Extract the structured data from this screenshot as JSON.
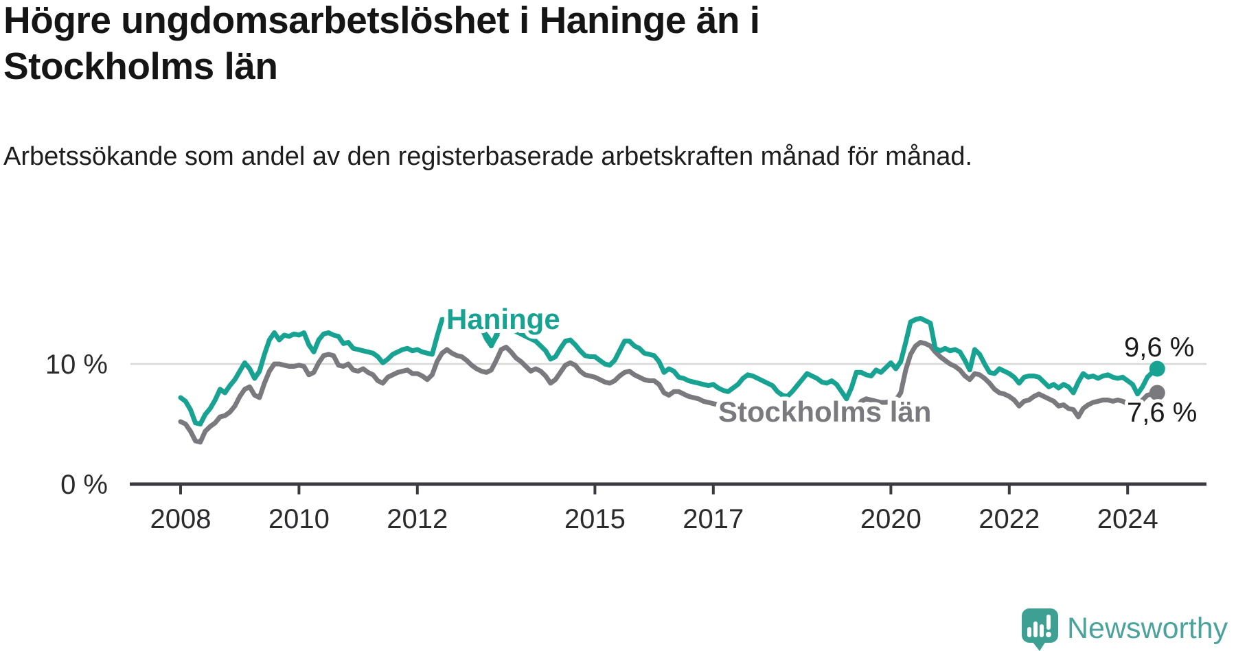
{
  "header": {
    "title": "Högre ungdomsarbetslöshet i Haninge än i Stockholms län",
    "subtitle": "Arbetssökande som andel av den registerbaserade arbetskraften månad för månad."
  },
  "chart_data": {
    "type": "line",
    "title": "Högre ungdomsarbetslöshet i Haninge än i Stockholms län",
    "subtitle": "Arbetssökande som andel av den registerbaserade arbetskraften månad för månad.",
    "x_unit": "month",
    "x_start": "2008-01",
    "x_end": "2024-07",
    "ylim": [
      0,
      14.5
    ],
    "grid": "single horizontal gridline at 10 %",
    "legend_position": "inline labels on lines",
    "x_ticks": [
      {
        "year": 2008,
        "label": "2008"
      },
      {
        "year": 2010,
        "label": "2010"
      },
      {
        "year": 2012,
        "label": "2012"
      },
      {
        "year": 2015,
        "label": "2015"
      },
      {
        "year": 2017,
        "label": "2017"
      },
      {
        "year": 2020,
        "label": "2020"
      },
      {
        "year": 2022,
        "label": "2022"
      },
      {
        "year": 2024,
        "label": "2024"
      }
    ],
    "y_ticks": [
      {
        "value": 10,
        "label": "10 %"
      },
      {
        "value": 0,
        "label": "0 %"
      }
    ],
    "series": [
      {
        "name": "Haninge",
        "color": "#17A291",
        "end_label": "9,6 %",
        "end_value": 9.6,
        "values": [
          7.2,
          6.9,
          6.2,
          5.1,
          5.0,
          5.8,
          6.3,
          7.0,
          7.9,
          7.6,
          8.2,
          8.7,
          9.4,
          10.1,
          9.6,
          8.8,
          9.4,
          10.8,
          12.0,
          12.6,
          12.0,
          12.4,
          12.3,
          12.5,
          12.4,
          12.6,
          11.6,
          11.0,
          12.0,
          12.5,
          12.6,
          12.4,
          12.3,
          11.7,
          11.8,
          11.3,
          11.2,
          11.1,
          11.0,
          10.9,
          10.6,
          10.1,
          10.4,
          10.8,
          11.0,
          11.2,
          11.3,
          11.1,
          11.2,
          11.0,
          10.9,
          10.8,
          12.3,
          13.7,
          13.7,
          13.6,
          13.5,
          13.4,
          13.3,
          13.2,
          13.1,
          13.0,
          12.1,
          11.5,
          12.4,
          13.1,
          13.2,
          13.0,
          12.7,
          12.5,
          12.3,
          12.1,
          11.9,
          11.5,
          11.1,
          10.4,
          10.6,
          11.3,
          11.9,
          12.0,
          11.6,
          11.1,
          10.7,
          10.6,
          10.6,
          10.3,
          10.0,
          9.9,
          10.3,
          11.1,
          11.9,
          11.9,
          11.5,
          11.3,
          10.9,
          10.8,
          10.7,
          10.2,
          9.3,
          9.6,
          9.4,
          8.9,
          8.8,
          8.6,
          8.5,
          8.4,
          8.3,
          8.2,
          8.3,
          8.0,
          7.8,
          7.7,
          8.0,
          8.3,
          8.8,
          9.1,
          9.0,
          8.8,
          8.6,
          8.4,
          8.2,
          7.7,
          7.4,
          7.3,
          7.7,
          8.2,
          8.7,
          9.2,
          9.0,
          8.8,
          8.5,
          8.4,
          8.6,
          8.3,
          7.7,
          7.1,
          8.0,
          9.3,
          9.3,
          9.1,
          9.0,
          9.5,
          9.3,
          9.7,
          10.1,
          9.6,
          10.2,
          11.8,
          13.5,
          13.7,
          13.8,
          13.6,
          13.4,
          11.3,
          11.1,
          11.3,
          11.1,
          11.2,
          11.0,
          10.3,
          9.5,
          11.2,
          10.8,
          10.0,
          9.3,
          9.2,
          9.6,
          9.4,
          9.2,
          8.9,
          8.4,
          8.9,
          9.0,
          9.0,
          8.9,
          8.5,
          8.1,
          8.3,
          8.0,
          8.3,
          8.1,
          7.6,
          8.5,
          9.2,
          8.9,
          9.0,
          8.8,
          9.0,
          9.1,
          8.9,
          8.8,
          8.9,
          8.6,
          8.3,
          7.5,
          8.1,
          8.9,
          9.3,
          9.6
        ]
      },
      {
        "name": "Stockholms län",
        "color": "#7A7A7E",
        "end_label": "7,6 %",
        "end_value": 7.6,
        "values": [
          5.2,
          5.0,
          4.4,
          3.6,
          3.5,
          4.4,
          4.8,
          5.1,
          5.6,
          5.7,
          6.0,
          6.5,
          7.3,
          7.9,
          8.1,
          7.4,
          7.2,
          8.4,
          9.4,
          10.0,
          10.0,
          9.9,
          9.8,
          9.8,
          9.9,
          9.8,
          9.1,
          9.3,
          10.1,
          10.7,
          10.8,
          10.7,
          9.9,
          9.8,
          10.0,
          9.5,
          9.4,
          9.6,
          9.3,
          9.1,
          8.6,
          8.4,
          8.9,
          9.1,
          9.3,
          9.4,
          9.5,
          9.2,
          9.2,
          9.0,
          8.7,
          9.1,
          10.2,
          10.9,
          11.2,
          10.9,
          10.7,
          10.6,
          10.3,
          9.9,
          9.6,
          9.4,
          9.3,
          9.5,
          10.3,
          11.2,
          11.4,
          11.0,
          10.5,
          10.2,
          9.8,
          9.4,
          9.6,
          9.4,
          9.0,
          8.4,
          8.7,
          9.3,
          9.9,
          10.1,
          9.9,
          9.4,
          9.1,
          9.0,
          8.9,
          8.7,
          8.5,
          8.4,
          8.6,
          9.0,
          9.3,
          9.4,
          9.1,
          8.9,
          8.7,
          8.6,
          8.6,
          8.3,
          7.6,
          7.4,
          7.7,
          7.7,
          7.5,
          7.3,
          7.2,
          7.1,
          6.9,
          6.8,
          6.7,
          6.6,
          6.4,
          6.3,
          6.3,
          6.2,
          6.3,
          6.3,
          6.2,
          6.1,
          6.0,
          5.9,
          5.9,
          5.7,
          5.6,
          5.6,
          5.7,
          5.8,
          6.0,
          6.1,
          5.9,
          5.8,
          5.7,
          5.7,
          5.8,
          5.7,
          5.6,
          5.7,
          5.9,
          6.3,
          6.9,
          7.1,
          7.0,
          6.9,
          6.8,
          6.8,
          6.9,
          7.0,
          7.6,
          9.5,
          10.8,
          11.5,
          11.8,
          11.7,
          11.5,
          11.0,
          10.6,
          10.3,
          10.0,
          9.8,
          9.5,
          9.0,
          8.7,
          9.2,
          9.1,
          8.8,
          8.4,
          7.9,
          7.6,
          7.5,
          7.3,
          7.0,
          6.5,
          6.9,
          7.0,
          7.3,
          7.5,
          7.3,
          7.1,
          6.9,
          6.5,
          6.6,
          6.3,
          6.2,
          5.6,
          6.3,
          6.6,
          6.8,
          6.9,
          7.0,
          7.0,
          6.9,
          7.0,
          6.9,
          6.7,
          6.6,
          6.4,
          7.0,
          7.4,
          7.5,
          7.6
        ]
      }
    ],
    "colors": {
      "gridline": "#D8D8D8",
      "axis": "#3A3A3F",
      "value_label_text": "#1A1A1A"
    }
  },
  "branding": {
    "logo_text": "Newsworthy",
    "logo_icon": "speech-bubble-bar-chart-icon",
    "logo_icon_color": "#3EA093",
    "logo_text_color": "#4BA39B"
  }
}
